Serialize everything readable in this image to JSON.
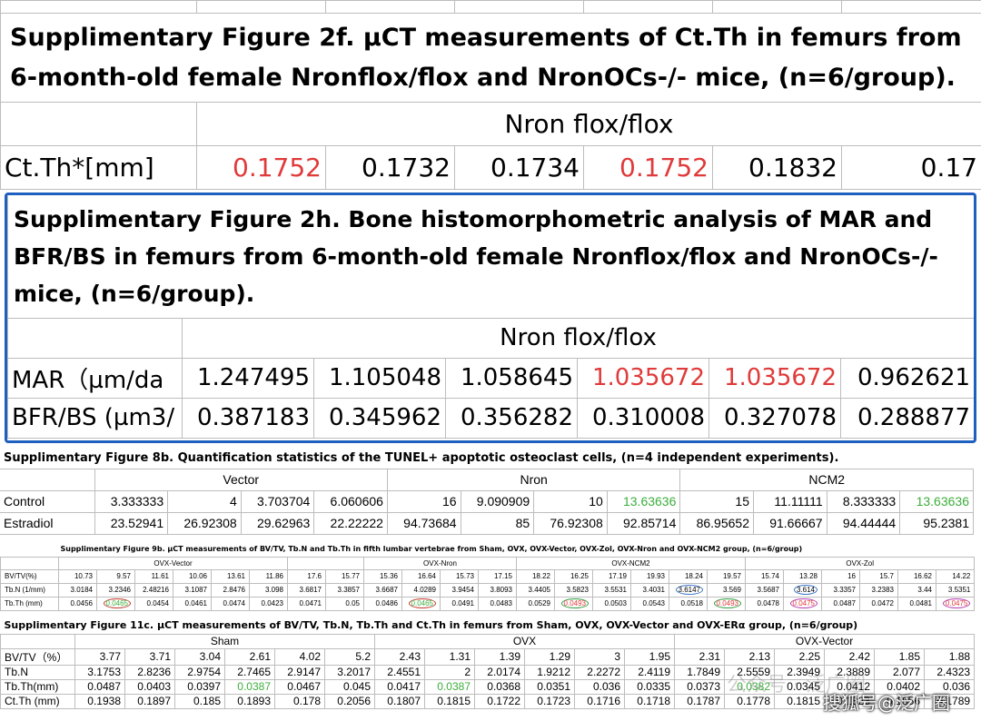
{
  "fig2f": {
    "title": "Supplimentary Figure 2f. µCT measurements of Ct.Th in femurs from 6-month-old female Nronflox/flox and NronOCs-/- mice, (n=6/group).",
    "group_header": "Nron flox/flox",
    "row_label": "Ct.Th*[mm]",
    "values": [
      "0.1752",
      "0.1732",
      "0.1734",
      "0.1752",
      "0.1832",
      "0.17"
    ]
  },
  "fig2h": {
    "title": "Supplimentary Figure 2h. Bone histomorphometric analysis of MAR and BFR/BS in femurs from 6-month-old female Nronflox/flox and NronOCs-/- mice, (n=6/group).",
    "group_header": "Nron flox/flox",
    "rows": [
      {
        "label": "MAR（µm/da",
        "values": [
          "1.247495",
          "1.105048",
          "1.058645",
          "1.035672",
          "1.035672",
          "0.962621"
        ]
      },
      {
        "label": "BFR/BS (µm3/",
        "values": [
          "0.387183",
          "0.345962",
          "0.356282",
          "0.310008",
          "0.327078",
          "0.288877"
        ]
      }
    ],
    "highlight_color": "#1f5fbf"
  },
  "fig8b": {
    "title": "Supplimentary Figure 8b. Quantification statistics of the TUNEL+ apoptotic osteoclast cells, (n=4 independent experiments).",
    "groups": [
      "Vector",
      "Nron",
      "NCM2"
    ],
    "rows": [
      {
        "label": "Control",
        "values": [
          "3.333333",
          "4",
          "3.703704",
          "6.060606",
          "16",
          "9.090909",
          "10",
          "13.63636",
          "15",
          "11.11111",
          "8.333333",
          "13.63636"
        ]
      },
      {
        "label": "Estradiol",
        "values": [
          "23.52941",
          "26.92308",
          "29.62963",
          "22.22222",
          "94.73684",
          "85",
          "76.92308",
          "92.85714",
          "86.95652",
          "91.66667",
          "94.44444",
          "95.2381"
        ]
      }
    ]
  },
  "fig9b": {
    "title": "Supplimentary Figure 9b. µCT measurements of BV/TV, Tb.N and Tb.Th in fifth lumbar vertebrae from Sham, OVX, OVX-Vector, OVX-Zol, OVX-Nron and OVX-NCM2 group, (n=6/group)",
    "groups": [
      "OVX-Vector",
      "OVX-Nron",
      "OVX-NCM2",
      "OVX-Zol"
    ],
    "rows": [
      {
        "label": "BV/TV(%)",
        "values": [
          "10.73",
          "9.57",
          "11.61",
          "10.06",
          "13.61",
          "11.86",
          "17.6",
          "15.77",
          "15.36",
          "16.64",
          "15.73",
          "17.15",
          "18.22",
          "16.25",
          "17.19",
          "19.93",
          "18.24",
          "19.57",
          "15.74",
          "13.28",
          "16",
          "15.7",
          "16.62",
          "14.22"
        ]
      },
      {
        "label": "Tb.N (1/mm)",
        "values": [
          "3.0184",
          "3.2346",
          "2.48216",
          "3.1087",
          "2.8476",
          "3.098",
          "3.6817",
          "3.3857",
          "3.6687",
          "4.0289",
          "3.9454",
          "3.8093",
          "3.4405",
          "3.5823",
          "3.5531",
          "3.4031",
          "3.6147",
          "3.569",
          "3.5687",
          "3.614",
          "3.3357",
          "3.2383",
          "3.44",
          "3.5351"
        ]
      },
      {
        "label": "Tb.Th (mm)",
        "values": [
          "0.0456",
          "0.0465",
          "0.0454",
          "0.0461",
          "0.0474",
          "0.0423",
          "0.0471",
          "0.05",
          "0.0486",
          "0.0465",
          "0.0491",
          "0.0483",
          "0.0529",
          "0.0493",
          "0.0503",
          "0.0543",
          "0.0518",
          "0.0493",
          "0.0478",
          "0.0475",
          "0.0487",
          "0.0472",
          "0.0481",
          "0.0475"
        ]
      }
    ]
  },
  "fig11c": {
    "title": "Supplimentary Figure 11c. µCT measurements of BV/TV, Tb.N, Tb.Th and Ct.Th in femurs from Sham, OVX, OVX-Vector and OVX-ERα group, (n=6/group)",
    "groups": [
      "Sham",
      "OVX",
      "OVX-Vector"
    ],
    "rows": [
      {
        "label": "BV/TV（%）",
        "values": [
          "3.77",
          "3.71",
          "3.04",
          "2.61",
          "4.02",
          "5.2",
          "2.43",
          "1.31",
          "1.39",
          "1.29",
          "3",
          "1.95",
          "2.31",
          "2.13",
          "2.25",
          "2.42",
          "1.85",
          "1.88"
        ]
      },
      {
        "label": "Tb.N",
        "values": [
          "3.1753",
          "2.8236",
          "2.9754",
          "2.7465",
          "2.9147",
          "3.2017",
          "2.4551",
          "2",
          "2.0174",
          "1.9212",
          "2.2272",
          "2.4119",
          "1.7849",
          "2.5559",
          "2.3949",
          "2.3889",
          "2.077",
          "2.4323"
        ]
      },
      {
        "label": "Tb.Th(mm)",
        "values": [
          "0.0487",
          "0.0403",
          "0.0397",
          "0.0387",
          "0.0467",
          "0.045",
          "0.0417",
          "0.0387",
          "0.0368",
          "0.0351",
          "0.036",
          "0.0335",
          "0.0373",
          "0.0382",
          "0.0345",
          "0.0412",
          "0.0402",
          "0.036"
        ]
      },
      {
        "label": "Ct.Th (mm)",
        "values": [
          "0.1938",
          "0.1897",
          "0.185",
          "0.1893",
          "0.178",
          "0.2056",
          "0.1807",
          "0.1815",
          "0.1722",
          "0.1723",
          "0.1716",
          "0.1718",
          "0.1787",
          "0.1778",
          "0.1815",
          "0.1823",
          "0.1856",
          "0.1789"
        ]
      }
    ]
  },
  "watermark": {
    "text": "搜狐号@泛广圈",
    "bg_text": "公众号 · 泛广圈"
  },
  "colors": {
    "red": "#e03a3a",
    "green": "#3cae3c",
    "border": "#bdbdbd"
  }
}
